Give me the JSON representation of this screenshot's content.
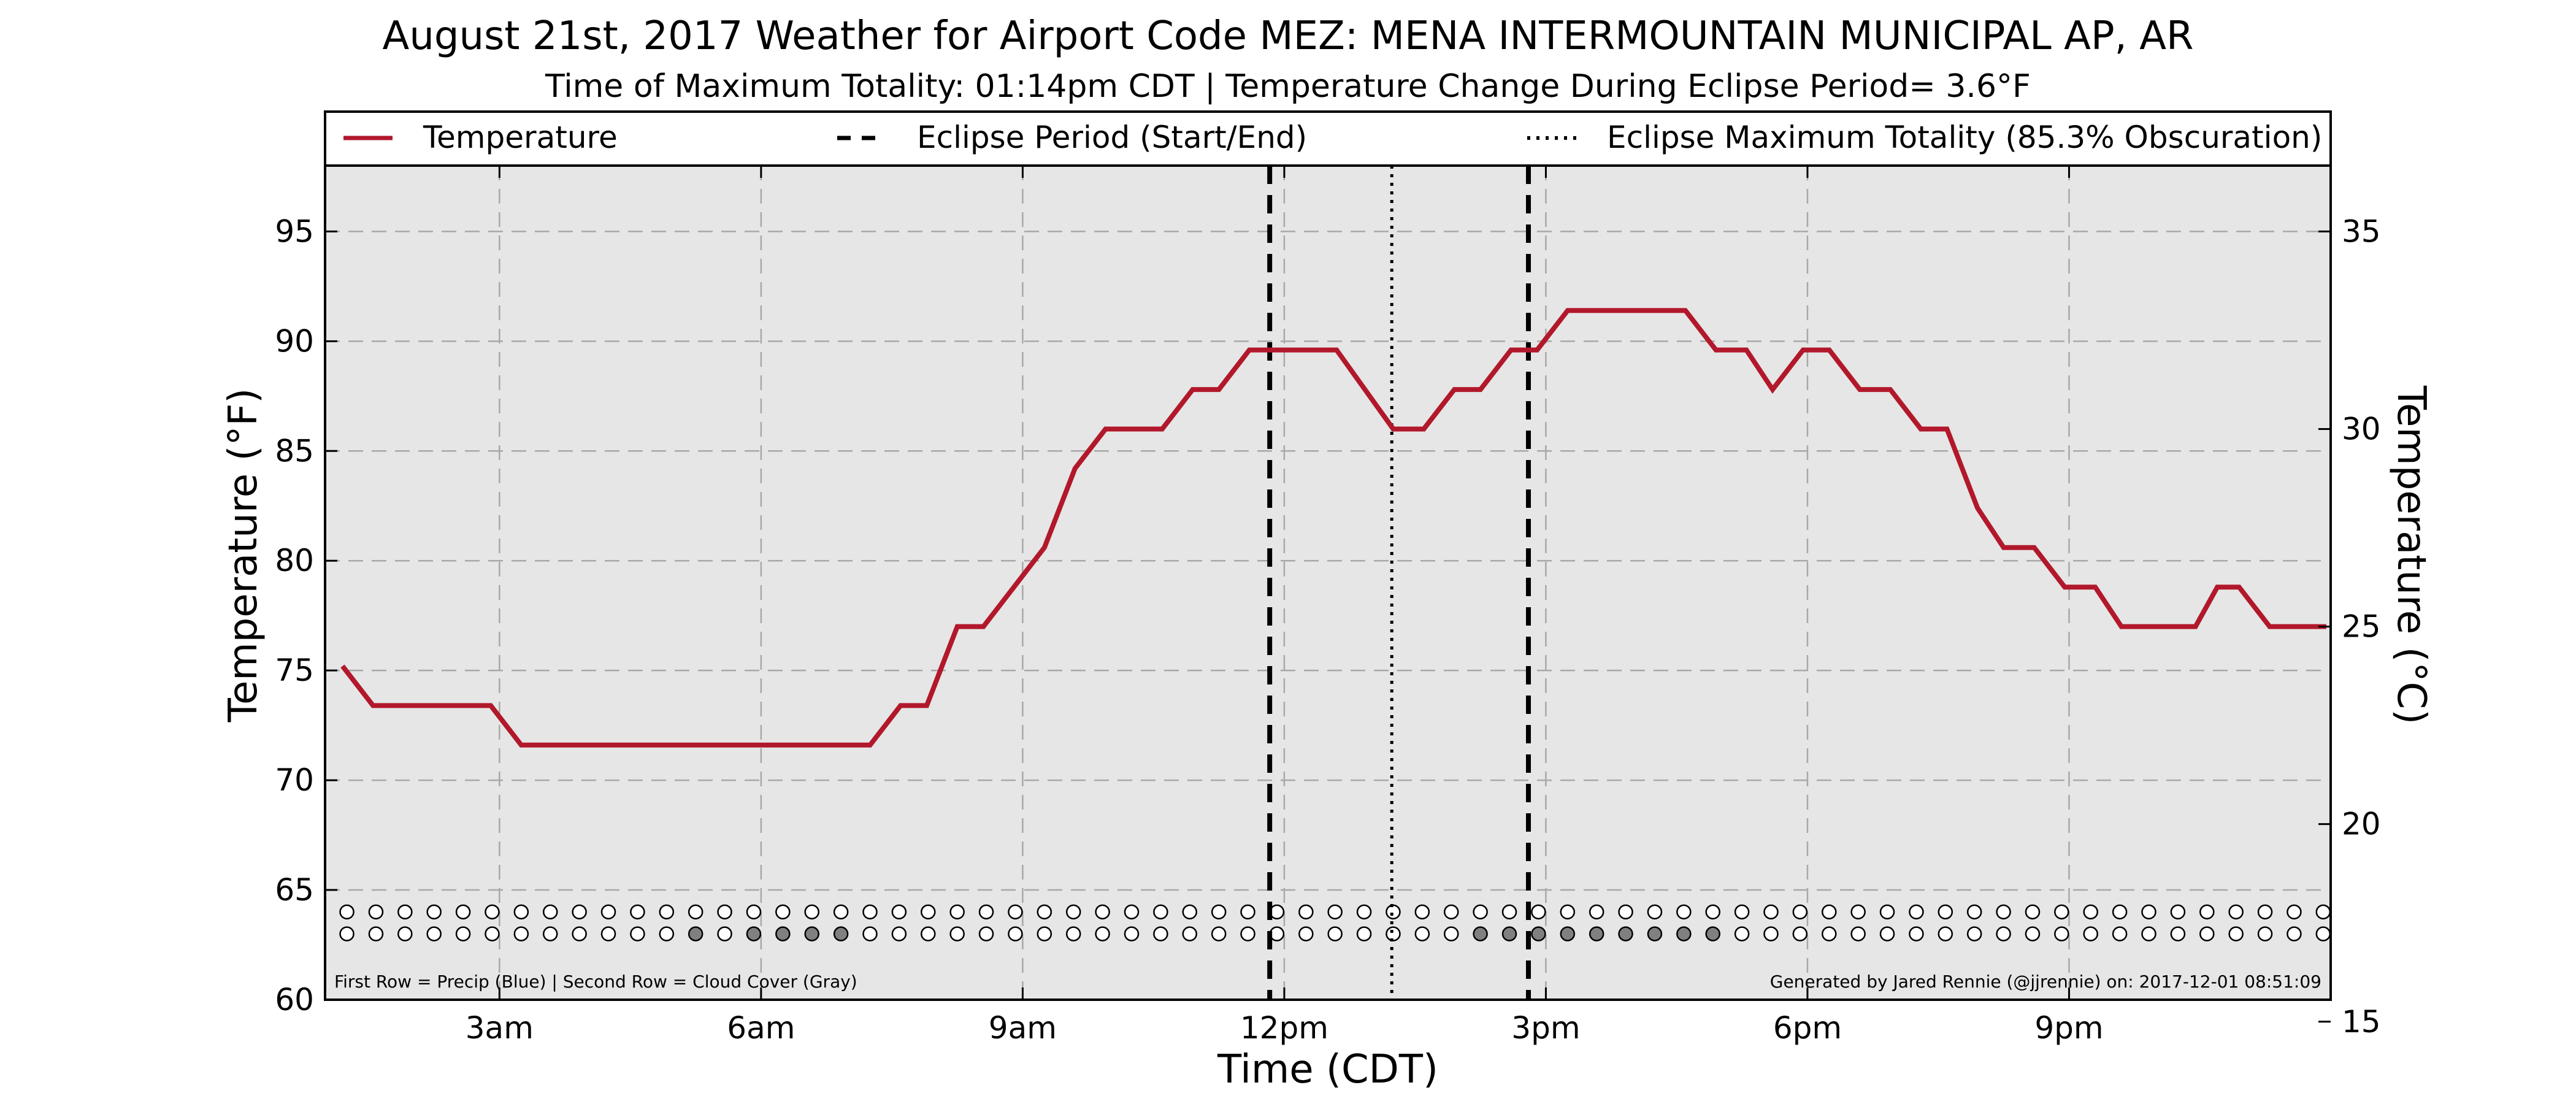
{
  "chart_data": {
    "type": "line",
    "title": "August 21st, 2017 Weather for Airport Code MEZ: MENA INTERMOUNTAIN MUNICIPAL AP, AR",
    "subtitle": "Time of Maximum Totality: 01:14pm CDT | Temperature Change During Eclipse Period= 3.6°F",
    "xlabel": "Time (CDT)",
    "ylabel": "Temperature (°F)",
    "ylabel_right": "Temperature (°C)",
    "xlim": [
      1.0,
      24.0
    ],
    "ylim": [
      60,
      98
    ],
    "ylim_right_c": [
      15.5556,
      36.6667
    ],
    "x_ticks": [
      {
        "x": 3,
        "label": "3am"
      },
      {
        "x": 6,
        "label": "6am"
      },
      {
        "x": 9,
        "label": "9am"
      },
      {
        "x": 12,
        "label": "12pm"
      },
      {
        "x": 15,
        "label": "3pm"
      },
      {
        "x": 18,
        "label": "6pm"
      },
      {
        "x": 21,
        "label": "9pm"
      }
    ],
    "y_ticks": [
      60,
      65,
      70,
      75,
      80,
      85,
      90,
      95
    ],
    "y_ticks_right": [
      15,
      20,
      25,
      30,
      35
    ],
    "grid": true,
    "legend_position": "top, full width above plot",
    "legend": [
      {
        "label": "Temperature",
        "style": "solid",
        "color": "#b2182b"
      },
      {
        "label": "Eclipse Period (Start/End)",
        "style": "dashed",
        "color": "#000000"
      },
      {
        "label": "Eclipse Maximum Totality (85.3% Obscuration)",
        "style": "dotted",
        "color": "#000000"
      }
    ],
    "series": [
      {
        "name": "Temperature",
        "color": "#b2182b",
        "x": [
          1.2,
          1.55,
          2.9,
          3.25,
          7.25,
          7.6,
          7.9,
          8.25,
          8.55,
          9.25,
          9.6,
          9.95,
          10.6,
          10.95,
          11.25,
          11.6,
          12.6,
          13.25,
          13.6,
          13.95,
          14.25,
          14.6,
          14.9,
          15.25,
          15.6,
          16.6,
          16.95,
          17.3,
          17.6,
          17.95,
          18.25,
          18.6,
          18.95,
          19.3,
          19.6,
          19.95,
          20.25,
          20.6,
          20.95,
          21.3,
          21.6,
          21.95,
          22.45,
          22.7,
          22.95,
          23.3,
          23.95
        ],
        "y": [
          75.2,
          73.4,
          73.4,
          71.6,
          71.6,
          73.4,
          73.4,
          77.0,
          77.0,
          80.6,
          84.2,
          86.0,
          86.0,
          87.8,
          87.8,
          89.6,
          89.6,
          86.0,
          86.0,
          87.8,
          87.8,
          89.6,
          89.6,
          91.4,
          91.4,
          91.4,
          89.6,
          89.6,
          87.8,
          89.6,
          89.6,
          87.8,
          87.8,
          86.0,
          86.0,
          82.4,
          80.6,
          80.6,
          78.8,
          78.8,
          77.0,
          77.0,
          77.0,
          78.8,
          78.8,
          77.0,
          77.0
        ]
      }
    ],
    "eclipse_start": 11.833,
    "eclipse_max": 13.233,
    "eclipse_end": 14.8,
    "precip_row": {
      "y": 64,
      "color": "#2166ac",
      "x_start": 1.25,
      "x_step": 0.3333,
      "count": 69,
      "values": []
    },
    "cloud_row": {
      "y": 63,
      "color": "#808080",
      "x_start": 1.25,
      "x_step": 0.3333,
      "count": 69,
      "filled_x": [
        5.25,
        5.92,
        6.25,
        6.58,
        6.92,
        14.25,
        14.58,
        14.92,
        15.25,
        15.58,
        15.92,
        16.25,
        16.58,
        16.92
      ]
    },
    "footnote_left": "First Row = Precip (Blue) | Second Row = Cloud Cover (Gray)",
    "footnote_right": "Generated by Jared Rennie (@jjrennie) on: 2017-12-01 08:51:09"
  }
}
